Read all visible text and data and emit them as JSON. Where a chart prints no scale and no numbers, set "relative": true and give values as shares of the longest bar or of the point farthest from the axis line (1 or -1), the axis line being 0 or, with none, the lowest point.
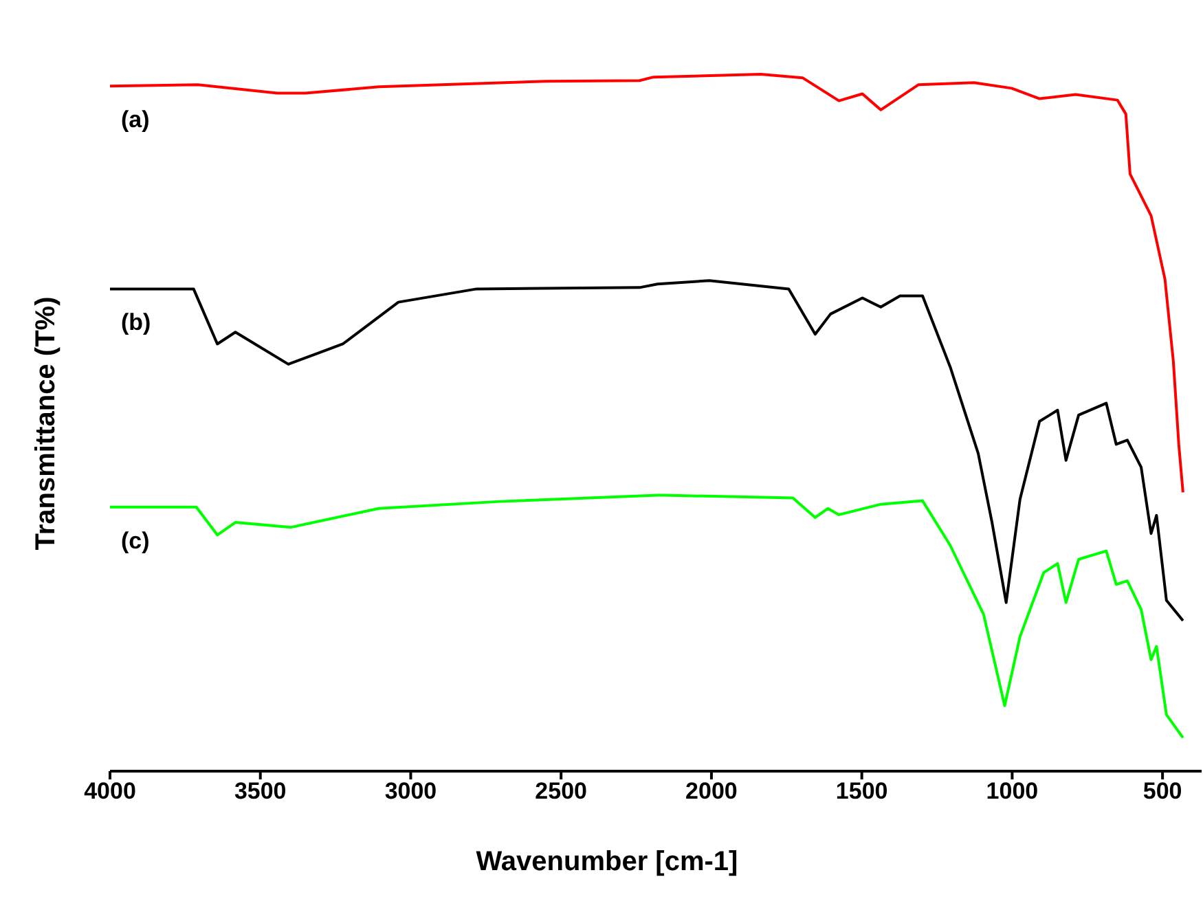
{
  "chart_data": {
    "type": "line",
    "xlabel": "Wavenumber [cm-1]",
    "ylabel": "Transmittance (T%)",
    "relative": true,
    "xlim": [
      4000,
      370
    ],
    "xticks": [
      4000,
      3500,
      3000,
      2500,
      2000,
      1500,
      1000,
      500
    ],
    "series": [
      {
        "name": "(a)",
        "color": "#ff0000",
        "x": [
          4000,
          3708,
          3444,
          3350,
          3106,
          2550,
          2239,
          2193,
          1836,
          1697,
          1576,
          1498,
          1437,
          1312,
          1127,
          1002,
          909,
          789,
          650,
          622,
          608,
          538,
          492,
          464,
          446,
          432
        ],
        "values": [
          0.983,
          0.985,
          0.973,
          0.973,
          0.982,
          0.99,
          0.991,
          0.996,
          1.0,
          0.995,
          0.962,
          0.972,
          0.949,
          0.985,
          0.988,
          0.98,
          0.965,
          0.971,
          0.963,
          0.943,
          0.857,
          0.797,
          0.706,
          0.588,
          0.469,
          0.4
        ]
      },
      {
        "name": "(b)",
        "color": "#000000",
        "x": [
          4000,
          3722,
          3643,
          3583,
          3407,
          3226,
          3041,
          2781,
          2239,
          2179,
          2007,
          1743,
          1655,
          1604,
          1498,
          1437,
          1373,
          1298,
          1206,
          1113,
          1067,
          1020,
          974,
          909,
          849,
          821,
          779,
          687,
          654,
          617,
          571,
          538,
          520,
          487,
          432
        ],
        "values": [
          0.692,
          0.692,
          0.613,
          0.63,
          0.584,
          0.613,
          0.673,
          0.692,
          0.694,
          0.699,
          0.704,
          0.692,
          0.627,
          0.656,
          0.679,
          0.666,
          0.682,
          0.682,
          0.58,
          0.456,
          0.357,
          0.242,
          0.39,
          0.502,
          0.518,
          0.446,
          0.511,
          0.528,
          0.469,
          0.475,
          0.436,
          0.341,
          0.367,
          0.245,
          0.216
        ]
      },
      {
        "name": "(c)",
        "color": "#00ff00",
        "x": [
          4000,
          3713,
          3643,
          3583,
          3398,
          3106,
          2703,
          2179,
          2160,
          1729,
          1655,
          1613,
          1576,
          1437,
          1298,
          1206,
          1095,
          1025,
          974,
          895,
          849,
          821,
          779,
          687,
          654,
          617,
          571,
          538,
          520,
          487,
          432
        ],
        "values": [
          0.379,
          0.379,
          0.339,
          0.357,
          0.35,
          0.377,
          0.387,
          0.396,
          0.396,
          0.392,
          0.364,
          0.377,
          0.368,
          0.383,
          0.388,
          0.324,
          0.225,
          0.094,
          0.193,
          0.285,
          0.298,
          0.242,
          0.304,
          0.316,
          0.268,
          0.273,
          0.232,
          0.16,
          0.179,
          0.081,
          0.048
        ]
      }
    ]
  }
}
